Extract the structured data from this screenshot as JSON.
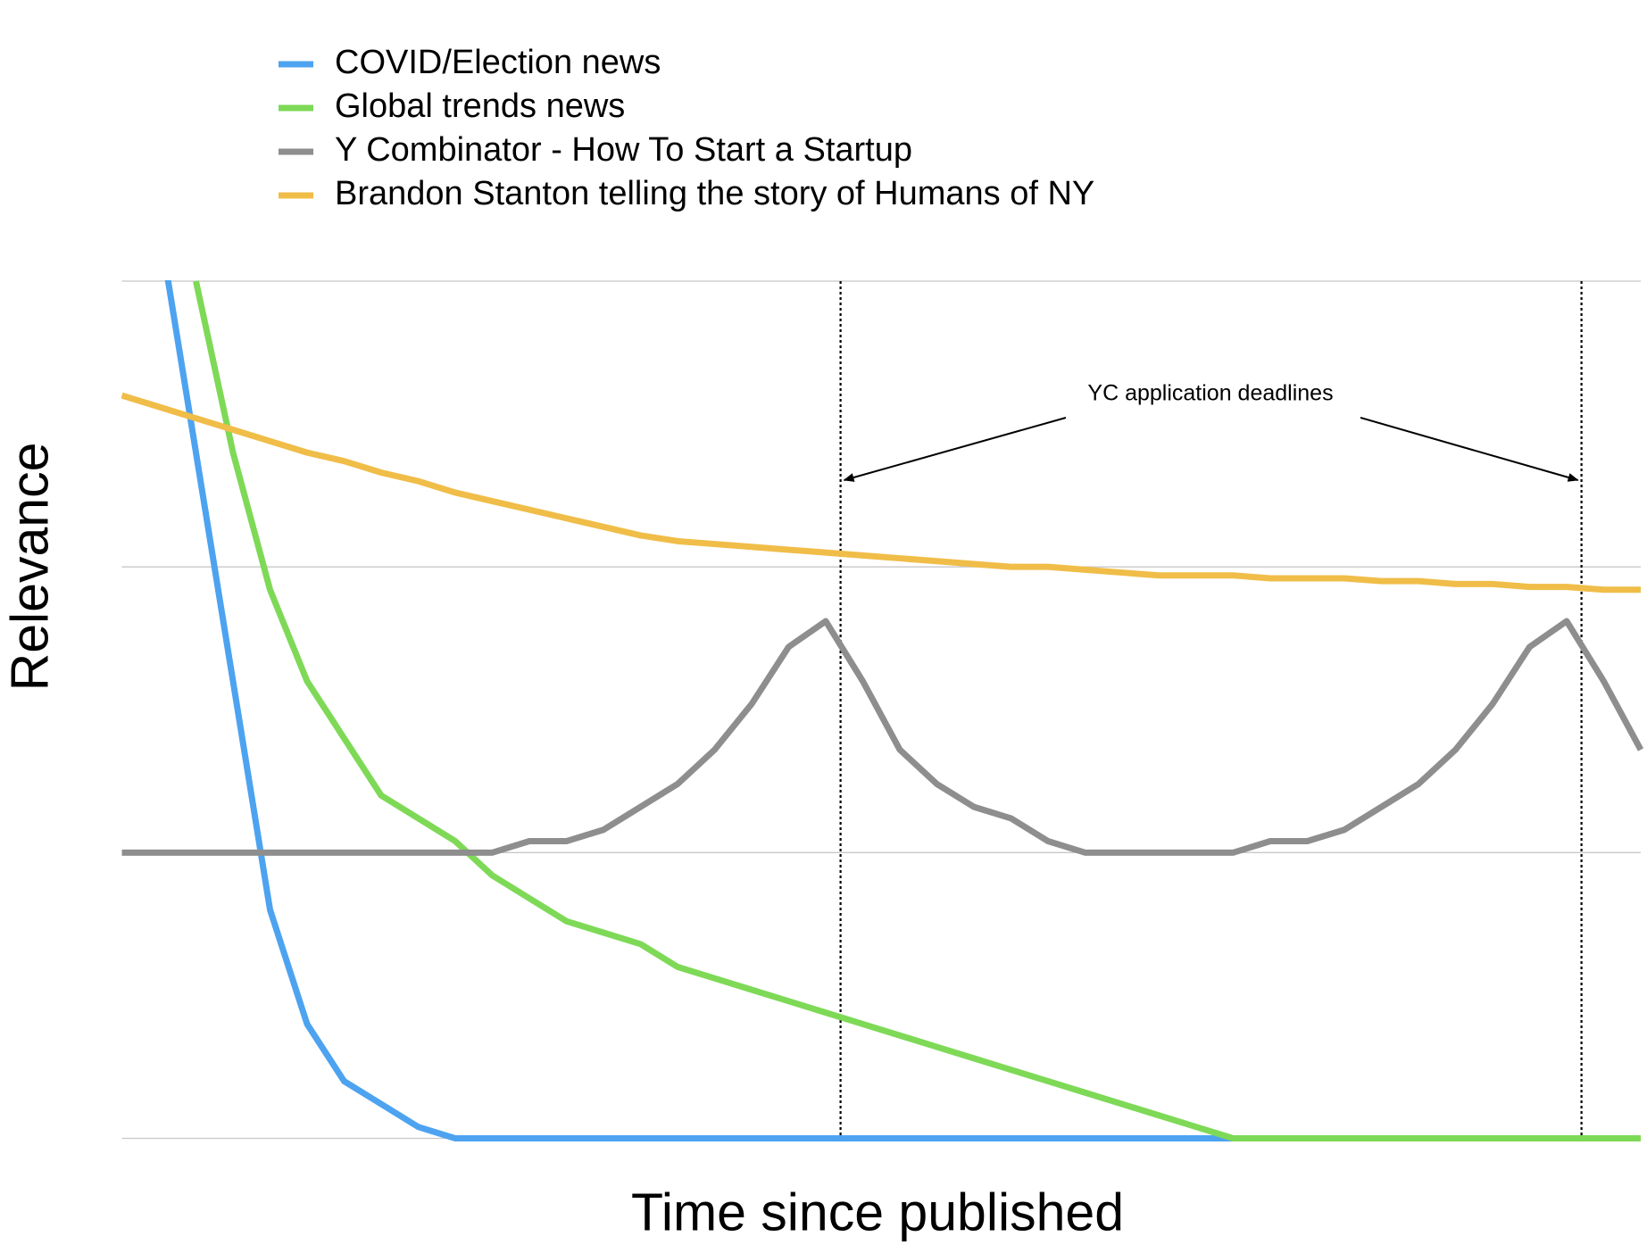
{
  "chart_data": {
    "type": "line",
    "x_label": "Time since published",
    "y_label": "Relevance",
    "x": [
      0,
      1,
      2,
      3,
      4,
      5,
      6,
      7,
      8,
      9,
      10,
      11,
      12,
      13,
      14,
      15,
      16,
      17,
      18,
      19,
      20,
      21,
      22,
      23,
      24,
      25,
      26,
      27,
      28,
      29,
      30,
      31,
      32,
      33,
      34,
      35,
      36,
      37,
      38,
      39,
      40,
      41
    ],
    "xlim": [
      0,
      41
    ],
    "ylim": [
      0,
      3
    ],
    "yticks": [
      0,
      1,
      2,
      3
    ],
    "grid": true,
    "series": [
      {
        "name": "COVID/Election news",
        "color": "#4da3f0",
        "values": [
          null,
          3.2,
          2.4,
          1.6,
          0.8,
          0.4,
          0.2,
          0.12,
          0.04,
          0,
          0,
          0,
          0,
          0,
          0,
          0,
          0,
          0,
          0,
          0,
          0,
          0,
          0,
          0,
          0,
          0,
          0,
          0,
          0,
          0,
          0,
          0,
          0,
          0,
          0,
          0,
          0,
          0,
          0,
          0,
          0,
          0
        ]
      },
      {
        "name": "Global trends news",
        "color": "#7ed957",
        "values": [
          null,
          null,
          3.0,
          2.4,
          1.92,
          1.6,
          1.4,
          1.2,
          1.12,
          1.04,
          0.92,
          0.84,
          0.76,
          0.72,
          0.68,
          0.6,
          0.56,
          0.52,
          0.48,
          0.44,
          0.4,
          0.36,
          0.32,
          0.28,
          0.24,
          0.2,
          0.16,
          0.12,
          0.08,
          0.04,
          0,
          0,
          0,
          0,
          0,
          0,
          0,
          0,
          0,
          0,
          0,
          0
        ]
      },
      {
        "name": "Y Combinator - How To Start a Startup",
        "color": "#8e8e8e",
        "values": [
          1,
          1,
          1,
          1,
          1,
          1,
          1,
          1,
          1,
          1,
          1,
          1.04,
          1.04,
          1.08,
          1.16,
          1.24,
          1.36,
          1.52,
          1.72,
          1.81,
          1.6,
          1.36,
          1.24,
          1.16,
          1.12,
          1.04,
          1,
          1,
          1,
          1,
          1,
          1.04,
          1.04,
          1.08,
          1.16,
          1.24,
          1.36,
          1.52,
          1.72,
          1.81,
          1.6,
          1.36
        ]
      },
      {
        "name": "Brandon Stanton telling the story of Humans of NY",
        "color": "#f0bd48",
        "values": [
          2.6,
          2.56,
          2.52,
          2.48,
          2.44,
          2.4,
          2.37,
          2.33,
          2.3,
          2.26,
          2.23,
          2.2,
          2.17,
          2.14,
          2.11,
          2.09,
          2.08,
          2.07,
          2.06,
          2.05,
          2.04,
          2.03,
          2.02,
          2.01,
          2.0,
          2.0,
          1.99,
          1.98,
          1.97,
          1.97,
          1.97,
          1.96,
          1.96,
          1.96,
          1.95,
          1.95,
          1.94,
          1.94,
          1.93,
          1.93,
          1.92,
          1.92
        ]
      }
    ],
    "annotation": {
      "text": "YC application deadlines",
      "x": [
        19.4,
        39.4
      ]
    }
  }
}
